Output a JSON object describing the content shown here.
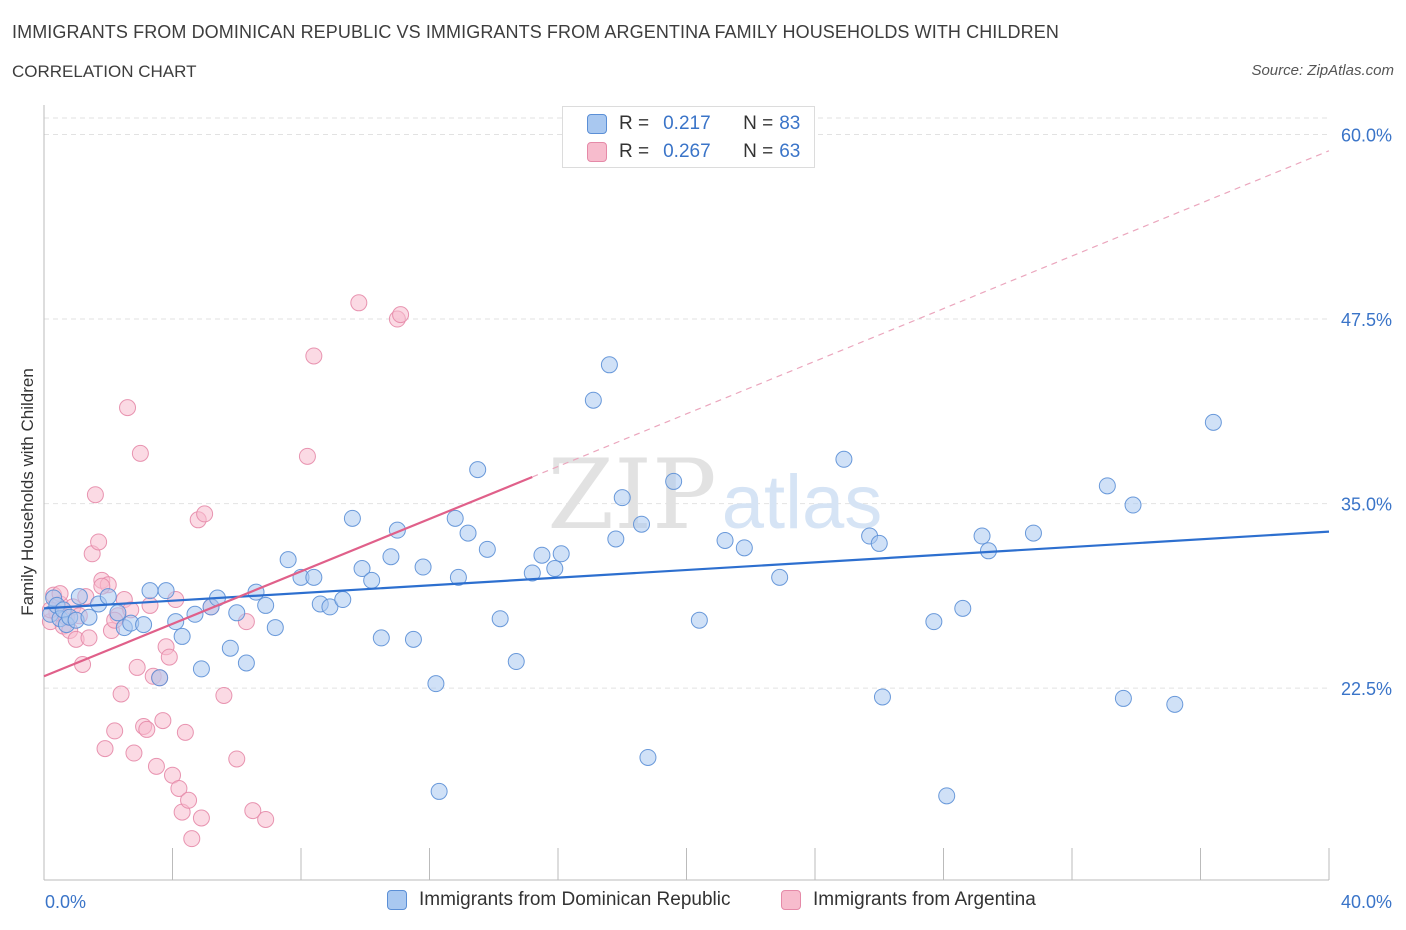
{
  "header": {
    "title": "IMMIGRANTS FROM DOMINICAN REPUBLIC VS IMMIGRANTS FROM ARGENTINA FAMILY HOUSEHOLDS WITH CHILDREN",
    "subtitle": "CORRELATION CHART",
    "source": "Source: ZipAtlas.com"
  },
  "watermark": {
    "zip": "ZIP",
    "atlas": "atlas"
  },
  "stats": [
    {
      "r_label": "R =",
      "r_value": "0.217",
      "n_label": "N =",
      "n_value": "83"
    },
    {
      "r_label": "R =",
      "r_value": "0.267",
      "n_label": "N =",
      "n_value": "63"
    }
  ],
  "legend": [
    {
      "label": "Immigrants from Dominican Republic"
    },
    {
      "label": "Immigrants from Argentina"
    }
  ],
  "colors": {
    "blue_fill": "#a9c8f0",
    "blue_stroke": "#5b8fd6",
    "blue_line": "#2d6fcf",
    "pink_fill": "#f7bccd",
    "pink_stroke": "#e58aa8",
    "pink_line": "#e0608a",
    "tick_label": "#3a74c8",
    "grid": "#e2e2e2"
  },
  "chart_data": {
    "type": "scatter",
    "title": "IMMIGRANTS FROM DOMINICAN REPUBLIC VS IMMIGRANTS FROM ARGENTINA FAMILY HOUSEHOLDS WITH CHILDREN",
    "xlabel": "",
    "ylabel": "Family Households with Children",
    "xlim": [
      0,
      40
    ],
    "ylim": [
      9.5,
      62
    ],
    "x_tick_labels": [
      "0.0%",
      "40.0%"
    ],
    "y_ticks": [
      22.5,
      35.0,
      47.5,
      60.0
    ],
    "y_tick_labels": [
      "22.5%",
      "35.0%",
      "47.5%",
      "60.0%"
    ],
    "grid": true,
    "legend_position": "bottom",
    "series": [
      {
        "name": "Immigrants from Dominican Republic",
        "color": "#5b8fd6",
        "r": 0.217,
        "n": 83,
        "trend": {
          "x": [
            0,
            40
          ],
          "y": [
            27.9,
            33.1
          ]
        },
        "points": [
          [
            0.2,
            27.5
          ],
          [
            0.3,
            28.6
          ],
          [
            0.4,
            28.1
          ],
          [
            0.5,
            27.2
          ],
          [
            0.6,
            27.8
          ],
          [
            0.7,
            26.8
          ],
          [
            0.8,
            27.3
          ],
          [
            1.0,
            27.1
          ],
          [
            1.1,
            28.7
          ],
          [
            1.4,
            27.3
          ],
          [
            1.7,
            28.2
          ],
          [
            2.0,
            28.7
          ],
          [
            2.3,
            27.6
          ],
          [
            2.5,
            26.6
          ],
          [
            2.7,
            26.9
          ],
          [
            3.1,
            26.8
          ],
          [
            3.3,
            29.1
          ],
          [
            3.6,
            23.2
          ],
          [
            3.8,
            29.1
          ],
          [
            4.1,
            27.0
          ],
          [
            4.3,
            26.0
          ],
          [
            4.7,
            27.5
          ],
          [
            4.9,
            23.8
          ],
          [
            5.2,
            28.0
          ],
          [
            5.4,
            28.6
          ],
          [
            5.8,
            25.2
          ],
          [
            6.0,
            27.6
          ],
          [
            6.3,
            24.2
          ],
          [
            6.6,
            29.0
          ],
          [
            6.9,
            28.1
          ],
          [
            7.2,
            26.6
          ],
          [
            7.6,
            31.2
          ],
          [
            8.0,
            30.0
          ],
          [
            8.4,
            30.0
          ],
          [
            8.6,
            28.2
          ],
          [
            8.9,
            28.0
          ],
          [
            9.3,
            28.5
          ],
          [
            9.6,
            34.0
          ],
          [
            9.9,
            30.6
          ],
          [
            10.2,
            29.8
          ],
          [
            10.5,
            25.9
          ],
          [
            10.8,
            31.4
          ],
          [
            11.0,
            33.2
          ],
          [
            11.5,
            25.8
          ],
          [
            11.8,
            30.7
          ],
          [
            12.2,
            22.8
          ],
          [
            12.3,
            15.5
          ],
          [
            12.8,
            34.0
          ],
          [
            12.9,
            30.0
          ],
          [
            13.2,
            33.0
          ],
          [
            13.5,
            37.3
          ],
          [
            13.8,
            31.9
          ],
          [
            14.2,
            27.2
          ],
          [
            14.7,
            24.3
          ],
          [
            15.2,
            30.3
          ],
          [
            15.5,
            31.5
          ],
          [
            15.9,
            30.6
          ],
          [
            16.1,
            31.6
          ],
          [
            17.1,
            42.0
          ],
          [
            17.6,
            44.4
          ],
          [
            17.8,
            32.6
          ],
          [
            18.0,
            35.4
          ],
          [
            18.8,
            17.8
          ],
          [
            18.6,
            33.6
          ],
          [
            19.6,
            36.5
          ],
          [
            20.4,
            27.1
          ],
          [
            21.2,
            32.5
          ],
          [
            21.8,
            32.0
          ],
          [
            22.9,
            30.0
          ],
          [
            24.9,
            38.0
          ],
          [
            25.7,
            32.8
          ],
          [
            26.0,
            32.3
          ],
          [
            26.1,
            21.9
          ],
          [
            27.7,
            27.0
          ],
          [
            28.1,
            15.2
          ],
          [
            28.6,
            27.9
          ],
          [
            29.2,
            32.8
          ],
          [
            29.4,
            31.8
          ],
          [
            30.8,
            33.0
          ],
          [
            33.1,
            36.2
          ],
          [
            33.6,
            21.8
          ],
          [
            33.9,
            34.9
          ],
          [
            35.2,
            21.4
          ],
          [
            36.4,
            40.5
          ]
        ]
      },
      {
        "name": "Immigrants from Argentina",
        "color": "#e58aa8",
        "r": 0.267,
        "n": 63,
        "trend": {
          "x": [
            0,
            15.2
          ],
          "y": [
            23.3,
            36.8
          ]
        },
        "trend_extended": {
          "x": [
            15.2,
            40
          ],
          "y": [
            36.8,
            58.9
          ]
        },
        "points": [
          [
            0.2,
            27.0
          ],
          [
            0.3,
            28.8
          ],
          [
            0.4,
            27.6
          ],
          [
            0.5,
            28.2
          ],
          [
            0.6,
            26.7
          ],
          [
            0.7,
            27.3
          ],
          [
            0.8,
            26.4
          ],
          [
            0.9,
            28.0
          ],
          [
            1.0,
            25.8
          ],
          [
            1.1,
            27.4
          ],
          [
            1.2,
            24.1
          ],
          [
            1.3,
            28.7
          ],
          [
            1.4,
            25.9
          ],
          [
            1.5,
            31.6
          ],
          [
            1.6,
            35.6
          ],
          [
            1.7,
            32.4
          ],
          [
            1.8,
            29.8
          ],
          [
            1.9,
            18.4
          ],
          [
            2.0,
            29.5
          ],
          [
            2.1,
            26.4
          ],
          [
            2.2,
            19.6
          ],
          [
            2.3,
            27.4
          ],
          [
            2.4,
            22.1
          ],
          [
            2.5,
            28.5
          ],
          [
            2.6,
            41.5
          ],
          [
            2.7,
            27.8
          ],
          [
            2.8,
            18.1
          ],
          [
            2.9,
            23.9
          ],
          [
            3.0,
            38.4
          ],
          [
            3.1,
            19.9
          ],
          [
            3.2,
            19.7
          ],
          [
            3.3,
            28.1
          ],
          [
            3.4,
            23.3
          ],
          [
            3.5,
            17.2
          ],
          [
            3.6,
            23.2
          ],
          [
            3.7,
            20.3
          ],
          [
            3.8,
            25.3
          ],
          [
            3.9,
            24.6
          ],
          [
            4.0,
            16.6
          ],
          [
            4.1,
            28.5
          ],
          [
            4.2,
            15.7
          ],
          [
            4.3,
            14.1
          ],
          [
            4.4,
            19.5
          ],
          [
            4.5,
            14.9
          ],
          [
            4.6,
            12.3
          ],
          [
            4.8,
            33.9
          ],
          [
            4.9,
            13.7
          ],
          [
            5.0,
            34.3
          ],
          [
            5.2,
            28.0
          ],
          [
            5.6,
            22.0
          ],
          [
            6.0,
            17.7
          ],
          [
            6.3,
            27.0
          ],
          [
            6.5,
            14.2
          ],
          [
            6.9,
            13.6
          ],
          [
            8.2,
            38.2
          ],
          [
            8.4,
            45.0
          ],
          [
            9.8,
            48.6
          ],
          [
            11.0,
            47.5
          ],
          [
            11.1,
            47.8
          ],
          [
            0.2,
            27.8
          ],
          [
            0.5,
            28.9
          ],
          [
            1.8,
            29.4
          ],
          [
            2.2,
            27.1
          ]
        ]
      }
    ]
  }
}
